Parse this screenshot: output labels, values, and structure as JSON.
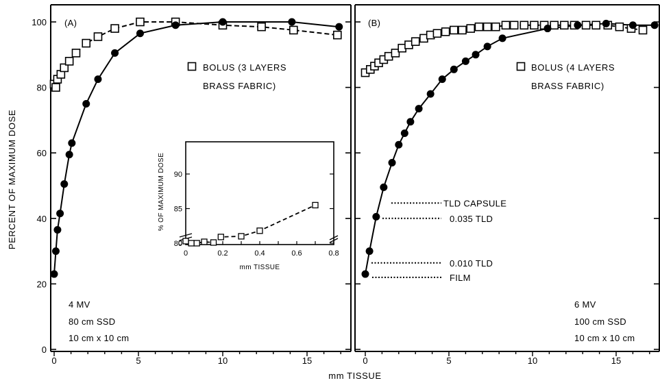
{
  "chart_data": [
    {
      "id": "A",
      "type": "scatter",
      "panel_label": "(A)",
      "xlabel": "mm TISSUE",
      "ylabel": "PERCENT OF MAXIMUM DOSE",
      "xlim": [
        0,
        17.5
      ],
      "ylim": [
        0,
        105
      ],
      "x_ticks": [
        "0",
        "5",
        "10",
        "15"
      ],
      "y_ticks": [
        "0",
        "20",
        "40",
        "60",
        "80",
        "100"
      ],
      "legend": [
        "BOLUS (3 LAYERS",
        "BRASS FABRIC)"
      ],
      "notes": [
        "4 MV",
        "80 cm SSD",
        "10 cm x 10 cm"
      ],
      "series": [
        {
          "name": "",
          "marker": "filled-circle",
          "line": "solid",
          "x": [
            0.0,
            0.1,
            0.2,
            0.35,
            0.6,
            0.9,
            1.05,
            1.9,
            2.6,
            3.6,
            5.1,
            7.2,
            10.0,
            14.1,
            16.9
          ],
          "y": [
            23.0,
            30.0,
            36.5,
            41.5,
            50.5,
            59.5,
            63.0,
            75.0,
            82.5,
            90.5,
            96.5,
            99.0,
            100.0,
            100.0,
            98.5
          ]
        },
        {
          "name": "BOLUS (3 LAYERS BRASS FABRIC)",
          "marker": "open-square",
          "line": "dashed",
          "x": [
            0.0,
            0.1,
            0.2,
            0.4,
            0.6,
            0.9,
            1.3,
            1.9,
            2.6,
            3.6,
            5.1,
            7.2,
            10.0,
            12.3,
            14.2,
            16.8
          ],
          "y": [
            81.0,
            80.0,
            82.5,
            84.0,
            86.0,
            88.0,
            90.5,
            93.5,
            95.5,
            98.0,
            100.0,
            100.0,
            99.0,
            98.5,
            97.5,
            96.0
          ]
        }
      ],
      "inset": {
        "type": "scatter",
        "xlabel": "mm TISSUE",
        "ylabel": "% OF MAXIMUM DOSE",
        "xlim": [
          0,
          0.8
        ],
        "ylim": [
          79.5,
          92
        ],
        "x_ticks": [
          "0",
          "0.2",
          "0.4",
          "0.6",
          "0.8"
        ],
        "y_ticks": [
          "0",
          "80",
          "85",
          "90"
        ],
        "axis_break": true,
        "x": [
          0.0,
          0.03,
          0.06,
          0.1,
          0.15,
          0.19,
          0.3,
          0.4,
          0.7
        ],
        "y": [
          80.3,
          80.0,
          80.0,
          80.2,
          80.1,
          80.9,
          81.0,
          81.8,
          85.5
        ]
      }
    },
    {
      "id": "B",
      "type": "scatter",
      "panel_label": "(B)",
      "xlabel": "mm TISSUE",
      "xlim": [
        0,
        17.5
      ],
      "ylim": [
        0,
        105
      ],
      "x_ticks": [
        "0",
        "5",
        "10",
        "15"
      ],
      "legend": [
        "BOLUS (4 LAYERS",
        "BRASS FABRIC)"
      ],
      "notes": [
        "6 MV",
        "100 cm SSD",
        "10 cm x 10 cm"
      ],
      "annotations": [
        {
          "text": "TLD CAPSULE",
          "y": 44.7
        },
        {
          "text": "0.035 TLD",
          "y": 40.0
        },
        {
          "text": "0.010 TLD",
          "y": 26.4
        },
        {
          "text": "FILM",
          "y": 22.0
        }
      ],
      "series": [
        {
          "name": "",
          "marker": "filled-circle",
          "line": "solid",
          "x": [
            0.0,
            0.25,
            0.65,
            1.1,
            1.6,
            2.0,
            2.35,
            2.7,
            3.2,
            3.9,
            4.6,
            5.3,
            6.0,
            6.6,
            7.3,
            8.2,
            10.9,
            12.7,
            14.4,
            16.0,
            17.3
          ],
          "y": [
            23.0,
            30.0,
            40.5,
            49.5,
            57.0,
            62.5,
            66.0,
            69.5,
            73.5,
            78.0,
            82.5,
            85.5,
            88.0,
            90.0,
            92.5,
            95.0,
            98.0,
            99.0,
            99.5,
            99.0,
            99.0
          ]
        },
        {
          "name": "BOLUS (4 LAYERS BRASS FABRIC)",
          "marker": "open-square",
          "line": "dashed",
          "x": [
            0.0,
            0.3,
            0.55,
            0.8,
            1.1,
            1.4,
            1.8,
            2.2,
            2.6,
            3.0,
            3.5,
            3.9,
            4.3,
            4.8,
            5.3,
            5.8,
            6.3,
            6.8,
            7.3,
            7.8,
            8.4,
            8.9,
            9.5,
            10.1,
            10.7,
            11.3,
            11.9,
            12.5,
            13.2,
            13.8,
            14.5,
            15.2,
            15.9,
            16.6
          ],
          "y": [
            84.5,
            85.5,
            86.5,
            87.5,
            88.5,
            89.5,
            90.5,
            92.0,
            93.0,
            94.0,
            95.0,
            96.0,
            96.5,
            97.0,
            97.5,
            97.5,
            98.0,
            98.5,
            98.5,
            98.5,
            99.0,
            99.0,
            99.0,
            99.0,
            99.0,
            99.0,
            99.0,
            99.0,
            99.0,
            99.0,
            99.0,
            98.5,
            98.0,
            97.5
          ]
        }
      ]
    }
  ]
}
